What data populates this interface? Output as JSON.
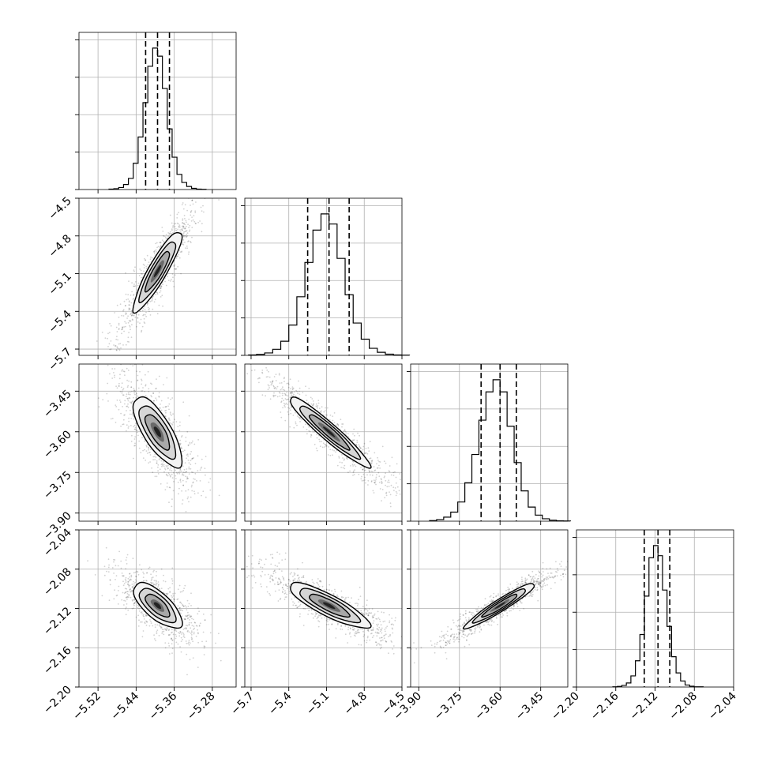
{
  "chart_data": {
    "type": "corner",
    "params": [
      {
        "mean": -5.395,
        "sd": 0.0255,
        "range": [
          -5.56,
          -5.23
        ],
        "ticks": [
          "-5.52",
          "-5.44",
          "-5.36",
          "-5.28"
        ],
        "tick_values": [
          -5.52,
          -5.44,
          -5.36,
          -5.28
        ],
        "quantiles": [
          -5.42,
          -5.395,
          -5.37
        ]
      },
      {
        "mean": -5.08,
        "sd": 0.16,
        "range": [
          -5.75,
          -4.5
        ],
        "ticks": [
          "-5.7",
          "-5.4",
          "-5.1",
          "-4.8",
          "-4.5"
        ],
        "tick_values": [
          -5.7,
          -5.4,
          -5.1,
          -4.8,
          -4.5
        ],
        "quantiles": [
          -5.25,
          -5.08,
          -4.92
        ]
      },
      {
        "mean": -3.6,
        "sd": 0.065,
        "range": [
          -3.93,
          -3.35
        ],
        "ticks": [
          "-3.90",
          "-3.75",
          "-3.60",
          "-3.45"
        ],
        "tick_values": [
          -3.9,
          -3.75,
          -3.6,
          -3.45
        ],
        "quantiles": [
          -3.67,
          -3.6,
          -3.54
        ]
      },
      {
        "mean": -2.117,
        "sd": 0.0115,
        "range": [
          -2.2,
          -2.04
        ],
        "ticks": [
          "-2.20",
          "-2.16",
          "-2.12",
          "-2.08",
          "-2.04"
        ],
        "tick_values": [
          -2.2,
          -2.16,
          -2.12,
          -2.08,
          -2.04
        ],
        "quantiles": [
          -2.131,
          -2.117,
          -2.105
        ]
      }
    ],
    "correlations": [
      [
        1,
        0.9,
        -0.75,
        -0.7
      ],
      [
        0.9,
        1,
        -0.95,
        -0.85
      ],
      [
        -0.75,
        -0.95,
        1,
        0.95
      ],
      [
        -0.7,
        -0.85,
        0.95,
        1
      ]
    ],
    "histograms": [
      [
        2,
        4,
        10,
        25,
        55,
        130,
        260,
        430,
        610,
        700,
        660,
        500,
        300,
        160,
        75,
        35,
        15,
        6,
        2,
        1
      ],
      [
        2,
        5,
        12,
        30,
        70,
        150,
        290,
        460,
        620,
        700,
        650,
        480,
        300,
        160,
        80,
        35,
        15,
        6,
        2,
        1
      ],
      [
        3,
        8,
        20,
        45,
        95,
        190,
        330,
        500,
        640,
        700,
        640,
        470,
        290,
        150,
        70,
        30,
        12,
        5,
        2,
        1
      ],
      [
        1,
        3,
        8,
        20,
        55,
        130,
        260,
        450,
        640,
        700,
        650,
        480,
        300,
        150,
        70,
        30,
        10,
        4,
        1,
        1
      ]
    ],
    "grid": true
  }
}
